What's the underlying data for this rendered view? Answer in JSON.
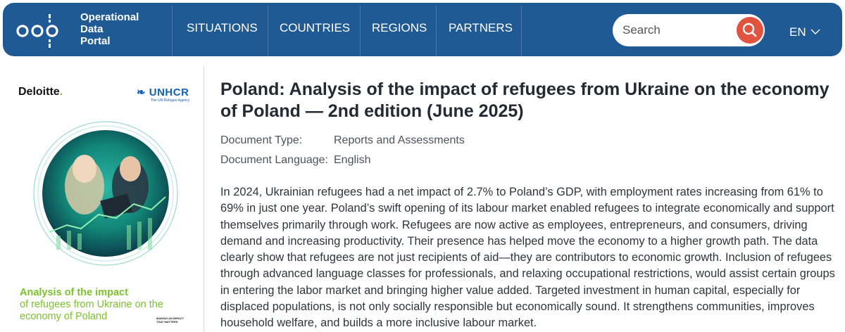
{
  "header": {
    "logo_lines": [
      "Operational",
      "Data",
      "Portal"
    ],
    "nav": [
      "SITUATIONS",
      "COUNTRIES",
      "REGIONS",
      "PARTNERS"
    ],
    "search_placeholder": "Search",
    "language": "EN",
    "colors": {
      "bar": "#1f5a94",
      "search_button": "#e0533f"
    }
  },
  "cover": {
    "publisher": "Deloitte",
    "partner": "UNHCR",
    "partner_subtitle": "The UN Refugee Agency",
    "title_bold": "Analysis of the impact",
    "title_rest": "of refugees from Ukraine on the economy of Poland",
    "badge": "MAKING AN IMPACT THAT MATTERS",
    "colors": {
      "accent_green": "#7cc12d",
      "circle_teal": "#1aa79c"
    }
  },
  "document": {
    "title": "Poland: Analysis of the impact of refugees from Ukraine on the economy of Poland — 2nd edition (June 2025)",
    "type_label": "Document Type:",
    "type_value": "Reports and Assessments",
    "language_label": "Document Language:",
    "language_value": "English",
    "summary": "In 2024, Ukrainian refugees had a net impact of 2.7% to Poland’s GDP, with employment rates increasing from 61% to 69% in just one year. Poland’s swift opening of its labour market enabled refugees to integrate economically and support themselves primarily through work. Refugees are now active as employees, entrepreneurs, and consumers, driving demand and increasing productivity. Their presence has helped move the economy to a higher growth path. The data clearly show that refugees are not just recipients of aid—they are contributors to economic growth. Inclusion of refugees through advanced language classes for professionals, and relaxing occupational restrictions, would assist certain groups in entering the labor market and bringing higher value added. Targeted investment in human capital, especially for displaced populations, is not only socially responsible but economically sound. It strengthens communities, improves household welfare, and builds a more inclusive labour market."
  }
}
